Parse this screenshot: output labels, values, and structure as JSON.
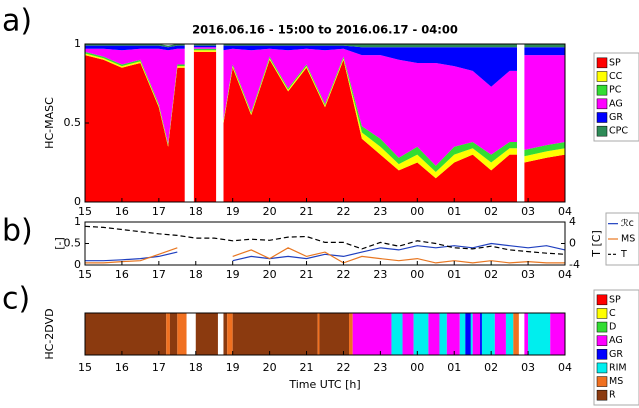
{
  "chart_data": [
    {
      "type": "area",
      "panel_label": "a)",
      "title": "2016.06.16 - 15:00 to 2016.06.17 - 04:00",
      "ylabel": "HC-MASC",
      "x": [
        15,
        15.5,
        16,
        16.5,
        17,
        17.25,
        17.5,
        17.7,
        17.8,
        17.95,
        18.3,
        18.55,
        18.65,
        18.75,
        19,
        19.5,
        20,
        20.5,
        21,
        21.5,
        22,
        22.5,
        23,
        23.5,
        24,
        24.5,
        25,
        25.5,
        26,
        26.5,
        26.7,
        26.8,
        26.9,
        27.5,
        28
      ],
      "series": [
        {
          "name": "SP",
          "color": "#ff0000",
          "values": [
            0.93,
            0.9,
            0.85,
            0.88,
            0.6,
            0.35,
            0.85,
            0.85,
            null,
            0.95,
            0.95,
            0.95,
            null,
            0.5,
            0.85,
            0.55,
            0.9,
            0.7,
            0.85,
            0.6,
            0.9,
            0.4,
            0.3,
            0.2,
            0.25,
            0.15,
            0.25,
            0.3,
            0.2,
            0.3,
            0.3,
            null,
            0.25,
            0.28,
            0.3
          ]
        },
        {
          "name": "CC",
          "color": "#ffff00",
          "values": [
            0.01,
            0.01,
            0.01,
            0.01,
            0.01,
            0.01,
            0.01,
            0.01,
            null,
            0.01,
            0.01,
            0.01,
            null,
            0.01,
            0.01,
            0.01,
            0.01,
            0.01,
            0.01,
            0.01,
            0.01,
            0.04,
            0.05,
            0.04,
            0.05,
            0.04,
            0.05,
            0.04,
            0.05,
            0.04,
            0.04,
            null,
            0.04,
            0.04,
            0.04
          ]
        },
        {
          "name": "PC",
          "color": "#33dd33",
          "values": [
            0.01,
            0.01,
            0.01,
            0.01,
            0.01,
            0.01,
            0.01,
            0.01,
            null,
            0.01,
            0.01,
            0.01,
            null,
            0.01,
            0.01,
            0.01,
            0.01,
            0.01,
            0.01,
            0.01,
            0.01,
            0.04,
            0.05,
            0.04,
            0.05,
            0.04,
            0.05,
            0.04,
            0.05,
            0.04,
            0.04,
            null,
            0.04,
            0.04,
            0.04
          ]
        },
        {
          "name": "AG",
          "color": "#ff00ff",
          "values": [
            0.02,
            0.05,
            0.09,
            0.07,
            0.35,
            0.59,
            0.1,
            0.1,
            null,
            0.01,
            0.01,
            0.01,
            null,
            0.44,
            0.1,
            0.39,
            0.05,
            0.24,
            0.1,
            0.34,
            0.05,
            0.45,
            0.53,
            0.62,
            0.53,
            0.65,
            0.51,
            0.45,
            0.43,
            0.45,
            0.45,
            null,
            0.6,
            0.57,
            0.55
          ]
        },
        {
          "name": "GR",
          "color": "#0000ff",
          "values": [
            0.02,
            0.02,
            0.03,
            0.02,
            0.02,
            0.02,
            0.02,
            0.02,
            null,
            0.01,
            0.01,
            0.01,
            null,
            0.03,
            0.02,
            0.03,
            0.02,
            0.03,
            0.02,
            0.03,
            0.02,
            0.05,
            0.05,
            0.08,
            0.1,
            0.1,
            0.12,
            0.15,
            0.25,
            0.15,
            0.15,
            null,
            0.05,
            0.05,
            0.05
          ]
        },
        {
          "name": "CPC",
          "color": "#2e8b57",
          "values": [
            0.01,
            0.01,
            0.01,
            0.01,
            0.01,
            0.01,
            0.01,
            0.01,
            null,
            0.01,
            0.01,
            0.01,
            null,
            0.01,
            0.01,
            0.01,
            0.01,
            0.01,
            0.01,
            0.01,
            0.01,
            0.02,
            0.02,
            0.02,
            0.02,
            0.02,
            0.02,
            0.02,
            0.02,
            0.02,
            0.02,
            null,
            0.02,
            0.02,
            0.02
          ]
        }
      ],
      "xlim": [
        15,
        28
      ],
      "xticks": [
        15,
        16,
        17,
        18,
        19,
        20,
        21,
        22,
        23,
        {
          "value": 24,
          "label": "00"
        },
        {
          "value": 25,
          "label": "01"
        },
        {
          "value": 26,
          "label": "02"
        },
        {
          "value": 27,
          "label": "03"
        },
        {
          "value": 28,
          "label": "04"
        }
      ],
      "ylim": [
        0,
        1
      ],
      "yticks": [
        0,
        0.5,
        1
      ]
    },
    {
      "type": "line",
      "panel_label": "b)",
      "ylabel": "[-]",
      "y2label": "T [C]",
      "x": [
        15,
        15.5,
        16,
        16.5,
        17,
        17.5,
        18,
        18.5,
        19,
        19.5,
        20,
        20.5,
        21,
        21.5,
        22,
        22.5,
        23,
        23.5,
        24,
        24.5,
        25,
        25.5,
        26,
        26.5,
        27,
        27.5,
        28
      ],
      "series": [
        {
          "name": "ℛc",
          "color": "#1f3fbf",
          "values": [
            0.1,
            0.1,
            0.12,
            0.15,
            0.2,
            0.3,
            null,
            null,
            0.1,
            0.2,
            0.15,
            0.2,
            0.15,
            0.25,
            0.2,
            0.3,
            0.4,
            0.35,
            0.45,
            0.4,
            0.45,
            0.4,
            0.5,
            0.45,
            0.4,
            0.45,
            0.35
          ]
        },
        {
          "name": "MS",
          "color": "#e87722",
          "values": [
            0.05,
            0.05,
            0.08,
            0.1,
            0.25,
            0.4,
            null,
            null,
            0.2,
            0.35,
            0.15,
            0.4,
            0.2,
            0.3,
            0.05,
            0.2,
            0.15,
            0.1,
            0.15,
            0.05,
            0.1,
            0.05,
            0.1,
            0.05,
            0.08,
            0.05,
            0.05
          ]
        },
        {
          "name": "T",
          "color": "#000000",
          "dashed": true,
          "axis": "y2",
          "values": [
            3.2,
            3,
            2.6,
            2.2,
            1.8,
            1.5,
            1,
            1,
            0.5,
            0.8,
            0.6,
            1.2,
            1.3,
            0.2,
            0.2,
            -1,
            0.2,
            -0.5,
            0.5,
            0,
            -0.8,
            -1,
            -0.5,
            -1.2,
            -1.5,
            -1.8,
            -2
          ]
        }
      ],
      "xlim": [
        15,
        28
      ],
      "xticks": [
        15,
        16,
        17,
        18,
        19,
        20,
        21,
        22,
        23,
        {
          "value": 24,
          "label": "00"
        },
        {
          "value": 25,
          "label": "01"
        },
        {
          "value": 26,
          "label": "02"
        },
        {
          "value": 27,
          "label": "03"
        },
        {
          "value": 28,
          "label": "04"
        }
      ],
      "ylim": [
        0,
        1
      ],
      "yticks": [
        0,
        0.5,
        1
      ],
      "y2lim": [
        -4,
        4
      ],
      "y2ticks": [
        -4,
        0,
        4
      ]
    },
    {
      "type": "segments",
      "panel_label": "c)",
      "ylabel": "HC-2DVD",
      "xlabel": "Time UTC [h]",
      "boundaries": [
        15,
        17.2,
        17.3,
        17.5,
        17.75,
        18,
        18.6,
        18.75,
        18.85,
        19,
        21.3,
        21.35,
        22.15,
        22.25,
        23.3,
        23.6,
        23.9,
        24.3,
        24.6,
        24.8,
        25.15,
        25.3,
        25.45,
        25.5,
        25.7,
        25.75,
        26.1,
        26.4,
        26.6,
        26.75,
        26.9,
        27,
        27.6,
        28
      ],
      "segment_classes": [
        "R",
        "MS",
        "R",
        "MS",
        null,
        "R",
        null,
        "R",
        "MS",
        "R",
        "MS",
        "R",
        "MS",
        "AG",
        "RIM",
        "AG",
        "RIM",
        "AG",
        "RIM",
        "AG",
        "RIM",
        "GR",
        "RIM",
        "AG",
        "GR",
        "RIM",
        "AG",
        "RIM",
        "MS",
        null,
        "AG",
        "RIM",
        "AG"
      ],
      "legend": [
        {
          "name": "SP",
          "color": "#ff0000"
        },
        {
          "name": "C",
          "color": "#ffff00"
        },
        {
          "name": "D",
          "color": "#33dd33"
        },
        {
          "name": "AG",
          "color": "#ff00ff"
        },
        {
          "name": "GR",
          "color": "#0000ff"
        },
        {
          "name": "RIM",
          "color": "#00eeee"
        },
        {
          "name": "MS",
          "color": "#f07020"
        },
        {
          "name": "R",
          "color": "#8b3a0f"
        }
      ],
      "xlim": [
        15,
        28
      ],
      "xticks": [
        15,
        16,
        17,
        18,
        19,
        20,
        21,
        22,
        23,
        {
          "value": 24,
          "label": "00"
        },
        {
          "value": 25,
          "label": "01"
        },
        {
          "value": 26,
          "label": "02"
        },
        {
          "value": 27,
          "label": "03"
        },
        {
          "value": 28,
          "label": "04"
        }
      ]
    }
  ]
}
